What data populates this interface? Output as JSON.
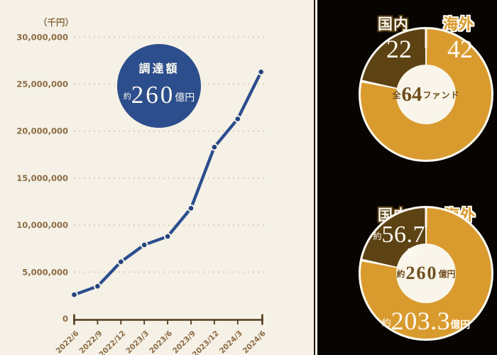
{
  "line_chart": {
    "unit_label": "（千円）",
    "origin_label": "0",
    "badge": {
      "title": "調達額",
      "prefix": "約",
      "value": "260",
      "suffix": "億円"
    }
  },
  "donut_funds": {
    "domestic_label": "国内",
    "overseas_label": "海外",
    "domestic_value": "22",
    "overseas_value": "42",
    "center_prefix": "全",
    "center_value": "64",
    "center_suffix": "ファンド"
  },
  "donut_amounts": {
    "domestic_label": "国内",
    "overseas_label": "海外",
    "domestic_prefix": "約",
    "domestic_value": "56.7",
    "domestic_suffix": "億円",
    "center_prefix": "約",
    "center_value": "260",
    "center_suffix": "億円",
    "overseas_prefix": "約",
    "overseas_value": "203.3",
    "overseas_suffix": "億円"
  },
  "colors": {
    "cream_background": "#f5f1e7",
    "black_background": "#070402",
    "line_blue": "#2b4d8d",
    "badge_blue": "#2c4e8c",
    "gold": "#d99b2e",
    "dark_brown": "#5d4214",
    "divider_white": "#fcf9f0",
    "axis_brown": "#533c1c",
    "label_brown": "#8d6c44"
  },
  "chart_data": [
    {
      "type": "line",
      "x": [
        "2022/6",
        "2022/9",
        "2022/12",
        "2023/3",
        "2023/6",
        "2023/9",
        "2023/12",
        "2024/3",
        "2024/6"
      ],
      "values": [
        2600000,
        3500000,
        6100000,
        7900000,
        8800000,
        11800000,
        18300000,
        21300000,
        26300000
      ],
      "ylabel": "（千円）",
      "ylim": [
        0,
        30000000
      ],
      "yticks": [
        5000000,
        10000000,
        15000000,
        20000000,
        25000000,
        30000000
      ],
      "grid": true,
      "annotation": "調達額 約260億円"
    },
    {
      "type": "pie",
      "title": "全64ファンド",
      "categories": [
        "国内",
        "海外"
      ],
      "values": [
        22,
        42
      ],
      "legend_position": "top"
    },
    {
      "type": "pie",
      "title": "約260億円",
      "categories": [
        "国内",
        "海外"
      ],
      "values": [
        56.7,
        203.3
      ],
      "unit": "億円",
      "legend_position": "top"
    }
  ]
}
